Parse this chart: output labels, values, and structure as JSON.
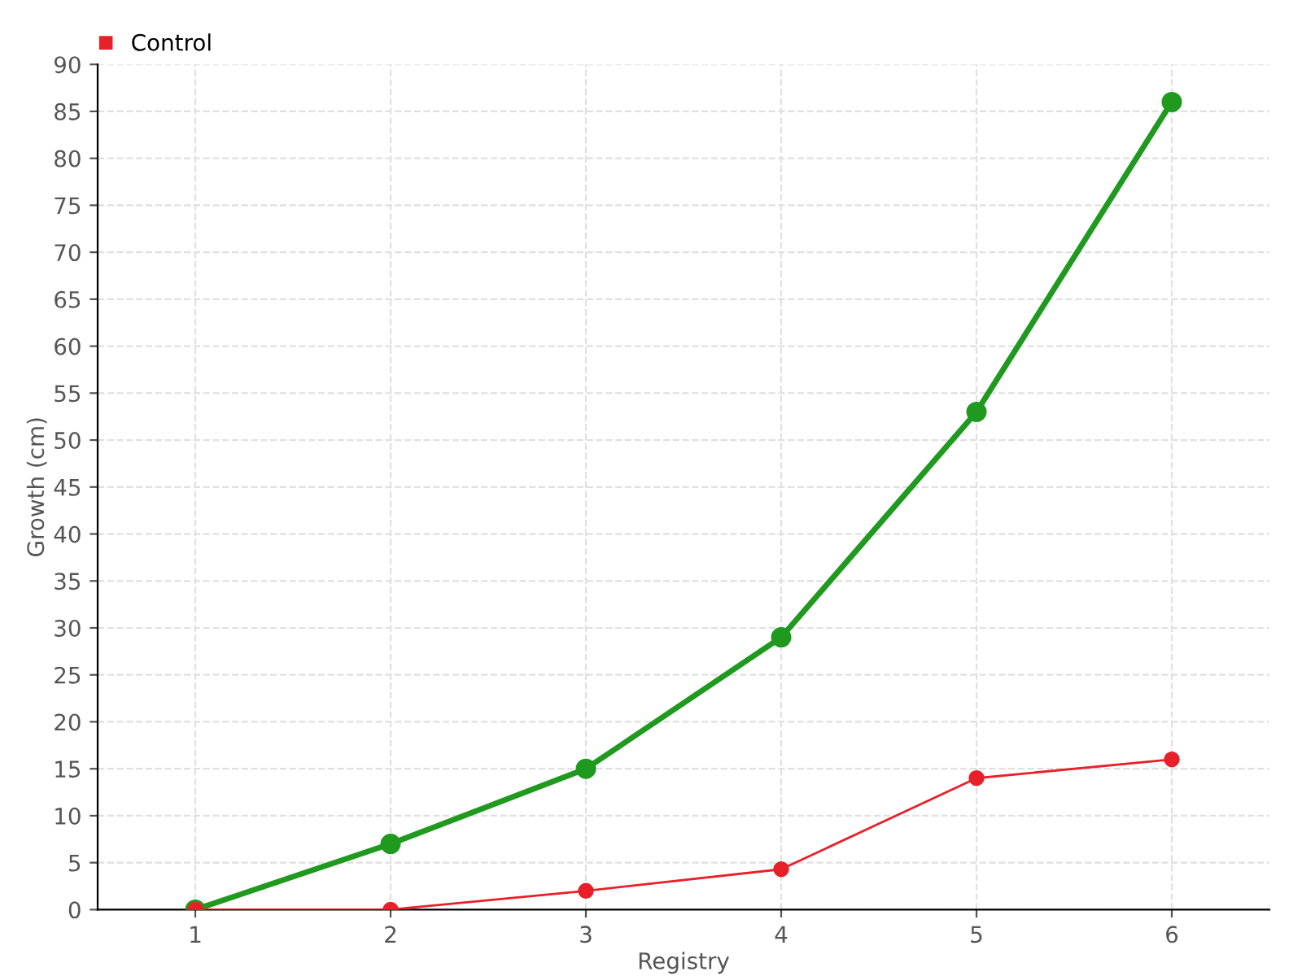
{
  "chart_data": {
    "type": "line",
    "xlabel": "Registry",
    "ylabel": "Growth (cm)",
    "categories": [
      "1",
      "2",
      "3",
      "4",
      "5",
      "6"
    ],
    "series": [
      {
        "color": "#1f9a1f",
        "values": [
          0,
          7,
          15,
          29,
          53,
          86
        ]
      },
      {
        "name": "Control",
        "color": "#e8202a",
        "values": [
          0,
          0,
          2,
          4.3,
          14,
          16
        ]
      }
    ],
    "ylim": [
      0,
      90
    ],
    "yticks": [
      0,
      5,
      10,
      15,
      20,
      25,
      30,
      35,
      40,
      45,
      50,
      55,
      60,
      65,
      70,
      75,
      80,
      85,
      90
    ],
    "grid": true,
    "legend": "top left",
    "marker": "circle",
    "line_style": "solid"
  }
}
